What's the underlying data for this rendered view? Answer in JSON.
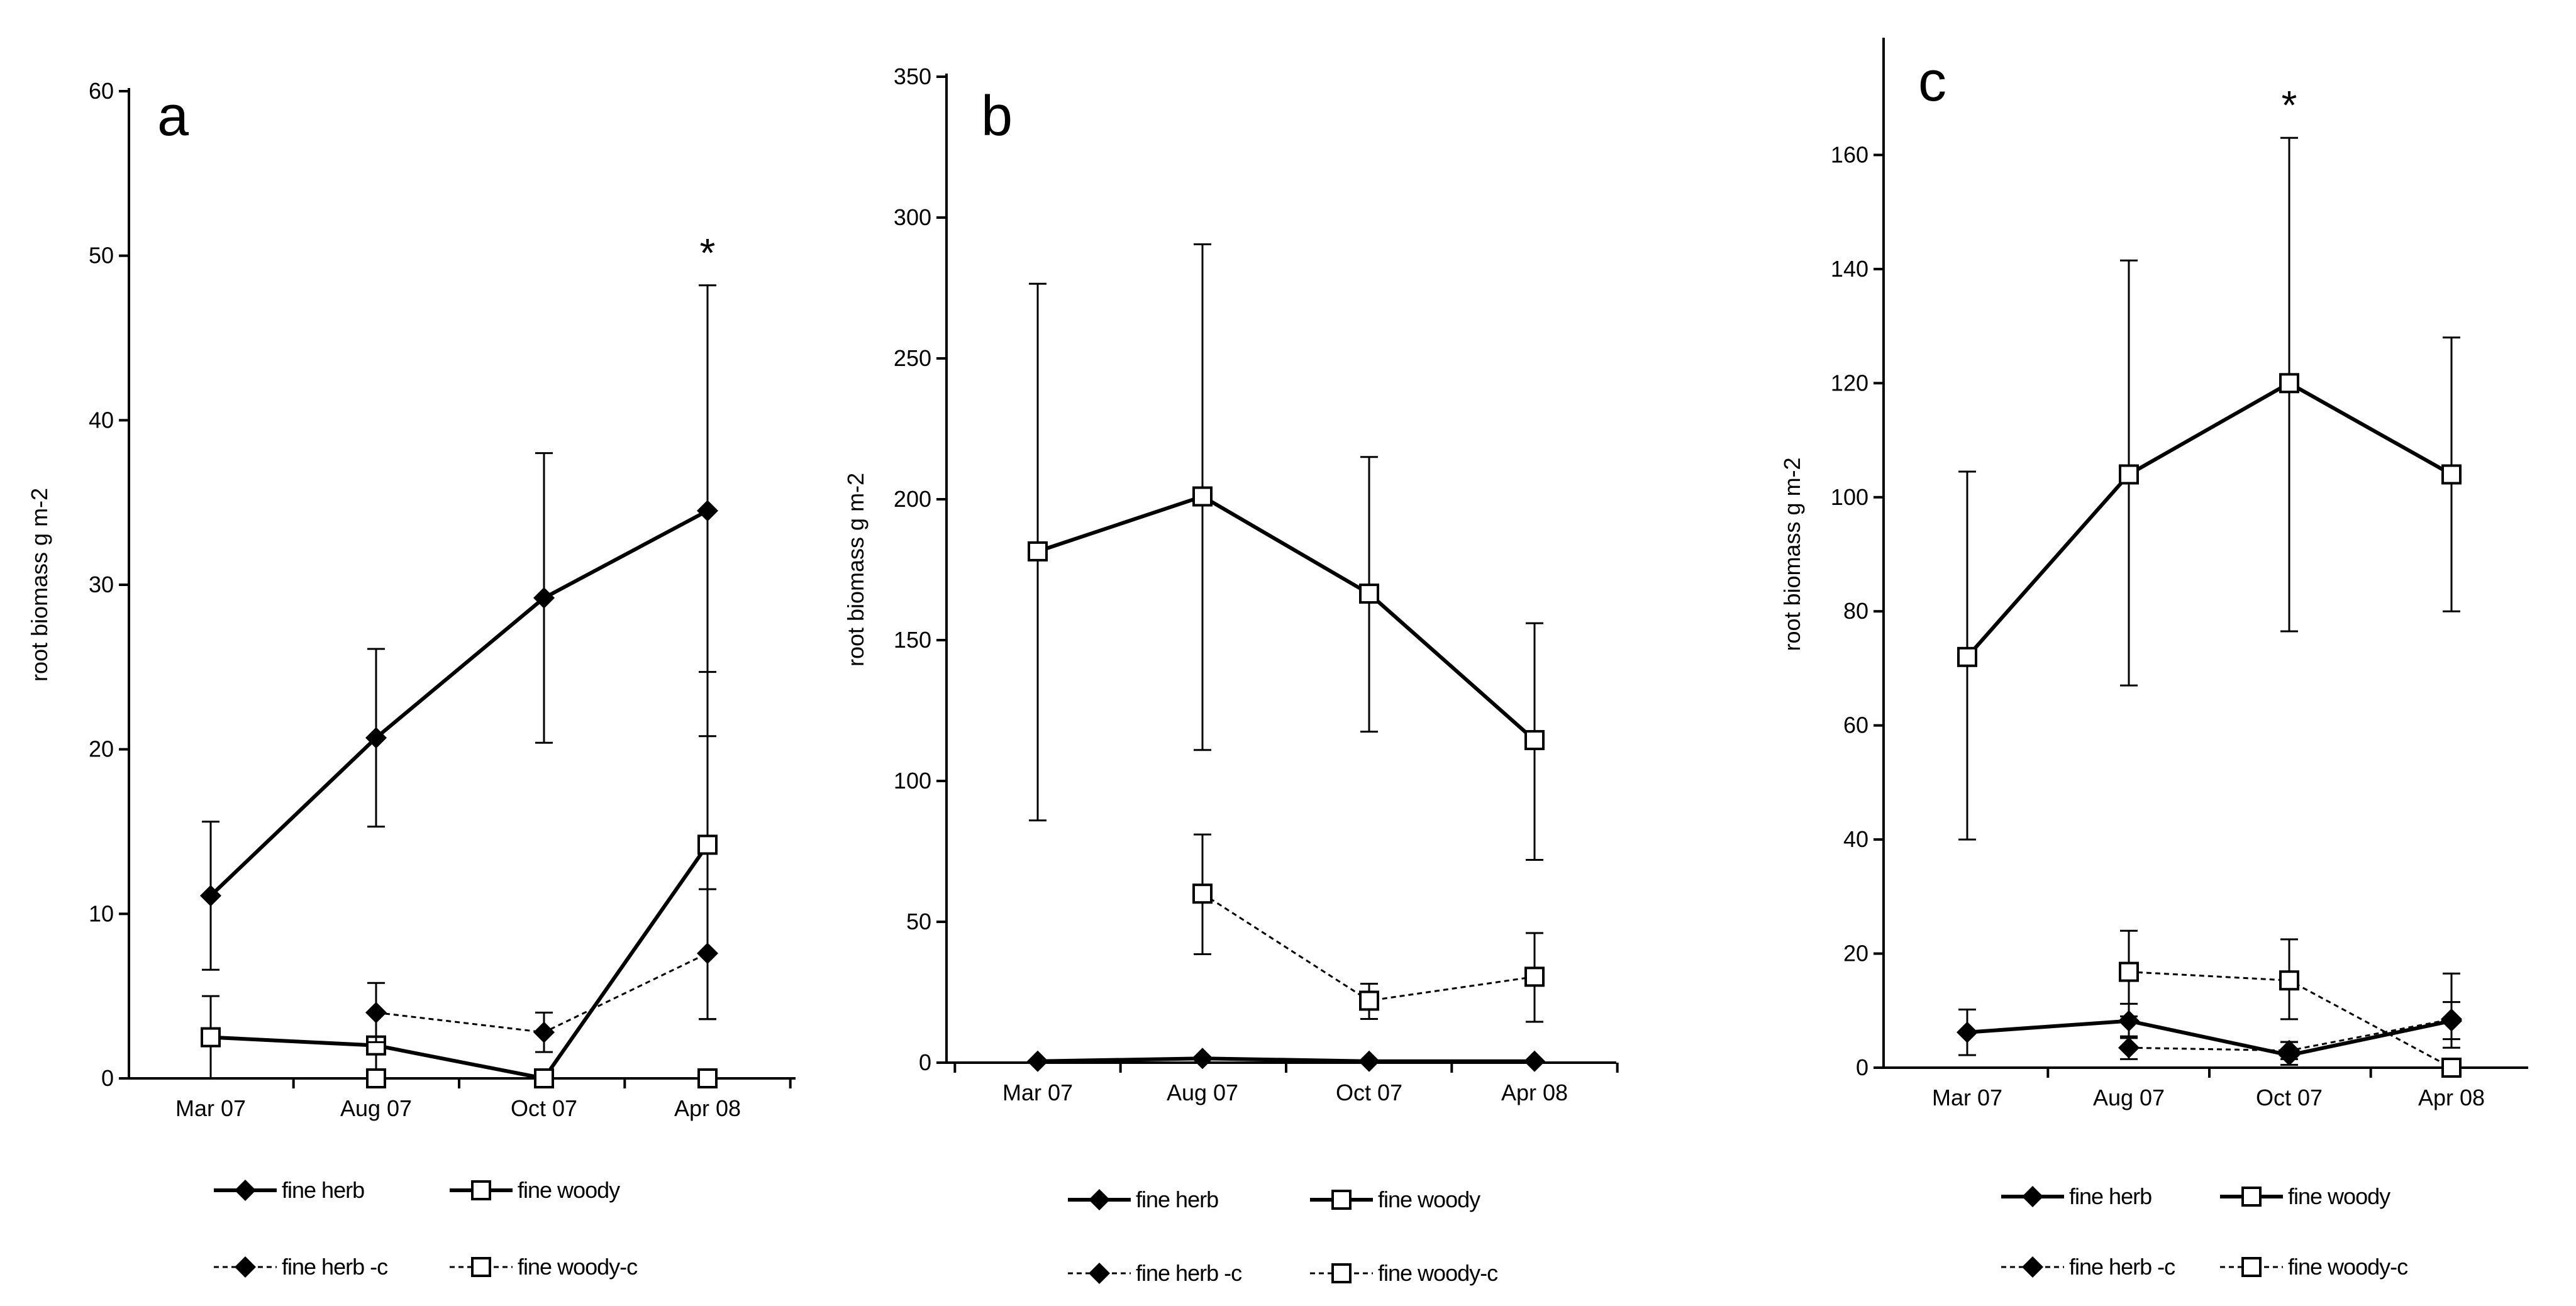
{
  "chart_data": [
    {
      "type": "line",
      "panel_label": "a",
      "ylabel": "root biomass  g m-2",
      "xlabel": "",
      "categories": [
        "Mar 07",
        "Aug 07",
        "Oct 07",
        "Apr 08"
      ],
      "ylim": [
        0,
        60
      ],
      "yticks": [
        0,
        10,
        20,
        30,
        40,
        50,
        60
      ],
      "annotation": {
        "text": "*",
        "category": "Apr 08"
      },
      "series": [
        {
          "name": "fine herb",
          "style": "solid",
          "marker": "diamond",
          "values": [
            11.1,
            20.7,
            29.2,
            34.5
          ],
          "err_low": [
            6.6,
            15.3,
            20.4,
            20.8
          ],
          "err_high": [
            15.6,
            26.1,
            38.0,
            48.2
          ]
        },
        {
          "name": "fine woody",
          "style": "solid",
          "marker": "square",
          "values": [
            2.5,
            2.0,
            0.0,
            14.2
          ],
          "err_low": [
            0,
            0,
            0,
            3.6
          ],
          "err_high": [
            5.0,
            4.0,
            0,
            24.7
          ]
        },
        {
          "name": "fine herb -c",
          "style": "dashed",
          "marker": "diamond",
          "values": [
            null,
            4.0,
            2.8,
            7.6
          ],
          "err_low": [
            null,
            2.2,
            1.6,
            3.6
          ],
          "err_high": [
            null,
            5.8,
            4.0,
            11.5
          ]
        },
        {
          "name": "fine woody-c",
          "style": "dashed",
          "marker": "square",
          "values": [
            null,
            0.0,
            0.0,
            0.0
          ],
          "err_low": [
            null,
            0,
            0,
            0
          ],
          "err_high": [
            null,
            0,
            0,
            0
          ]
        }
      ]
    },
    {
      "type": "line",
      "panel_label": "b",
      "ylabel": "root biomass  g m-2",
      "xlabel": "",
      "categories": [
        "Mar 07",
        "Aug 07",
        "Oct 07",
        "Apr 08"
      ],
      "ylim": [
        0,
        350
      ],
      "yticks": [
        0,
        50,
        100,
        150,
        200,
        250,
        300,
        350
      ],
      "annotation": null,
      "series": [
        {
          "name": "fine herb",
          "style": "solid",
          "marker": "diamond",
          "values": [
            0.5,
            1.5,
            0.5,
            0.5
          ],
          "err_low": [
            0,
            0,
            0,
            0
          ],
          "err_high": [
            0,
            0,
            0,
            0
          ]
        },
        {
          "name": "fine woody",
          "style": "solid",
          "marker": "square",
          "values": [
            181.5,
            201.0,
            166.5,
            114.5
          ],
          "err_low": [
            86.0,
            111.0,
            117.5,
            72.0
          ],
          "err_high": [
            276.5,
            290.5,
            215.0,
            156.0
          ]
        },
        {
          "name": "fine herb -c",
          "style": "dashed",
          "marker": "diamond",
          "values": [
            null,
            null,
            null,
            null
          ],
          "err_low": [
            null,
            null,
            null,
            null
          ],
          "err_high": [
            null,
            null,
            null,
            null
          ]
        },
        {
          "name": "fine woody-c",
          "style": "dashed",
          "marker": "square",
          "values": [
            null,
            60.0,
            22.0,
            30.5
          ],
          "err_low": [
            null,
            38.5,
            15.5,
            14.5
          ],
          "err_high": [
            null,
            81.0,
            28.0,
            46.0
          ]
        }
      ]
    },
    {
      "type": "line",
      "panel_label": "c",
      "ylabel": "root biomass  g m-2",
      "xlabel": "",
      "categories": [
        "Mar 07",
        "Aug 07",
        "Oct 07",
        "Apr 08"
      ],
      "ylim": [
        0,
        180
      ],
      "yticks": [
        0,
        20,
        40,
        60,
        80,
        100,
        120,
        140,
        160
      ],
      "annotation": {
        "text": "*",
        "category": "Oct 07"
      },
      "series": [
        {
          "name": "fine herb",
          "style": "solid",
          "marker": "diamond",
          "values": [
            6.2,
            8.2,
            2.2,
            8.2
          ],
          "err_low": [
            2.2,
            5.2,
            0.5,
            3.5
          ],
          "err_high": [
            10.2,
            11.2,
            4.5,
            16.5
          ]
        },
        {
          "name": "fine woody",
          "style": "solid",
          "marker": "square",
          "values": [
            72.0,
            104.0,
            120.0,
            104.0
          ],
          "err_low": [
            40.0,
            67.0,
            76.5,
            80.0
          ],
          "err_high": [
            104.5,
            141.5,
            163.0,
            128.0
          ]
        },
        {
          "name": "fine herb -c",
          "style": "dashed",
          "marker": "diamond",
          "values": [
            null,
            3.5,
            3.0,
            8.5
          ],
          "err_low": [
            null,
            1.5,
            1.5,
            5.0
          ],
          "err_high": [
            null,
            5.5,
            4.5,
            11.5
          ]
        },
        {
          "name": "fine woody-c",
          "style": "dashed",
          "marker": "square",
          "values": [
            null,
            16.8,
            15.3,
            0.0
          ],
          "err_low": [
            null,
            9.0,
            8.5,
            0
          ],
          "err_high": [
            null,
            24.0,
            22.5,
            0
          ]
        }
      ]
    }
  ]
}
